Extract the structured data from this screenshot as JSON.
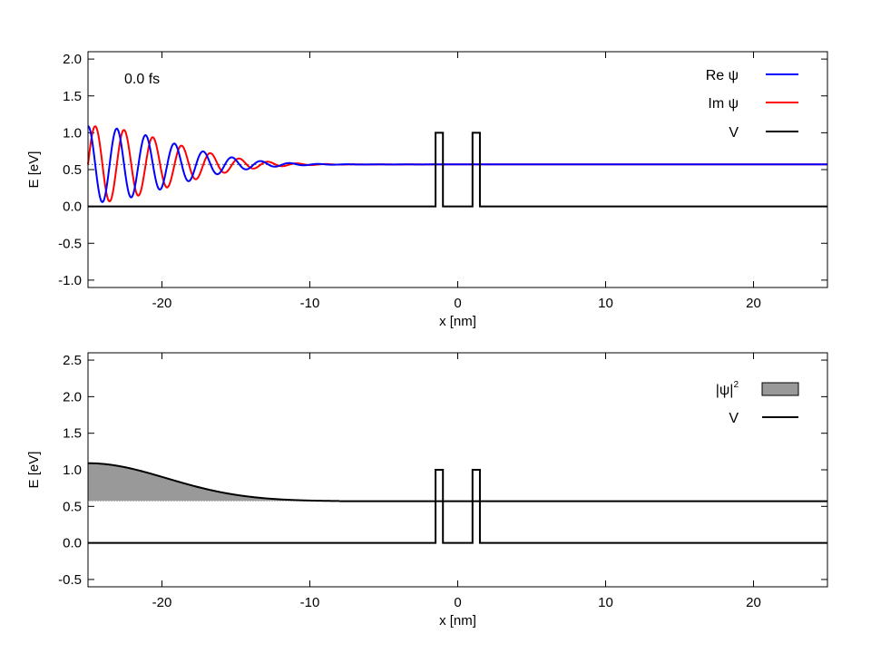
{
  "chart_data": [
    {
      "type": "line",
      "annotation": "0.0 fs",
      "xlabel": "x [nm]",
      "ylabel": "E [eV]",
      "xlim": [
        -25,
        25
      ],
      "ylim": [
        -1.1,
        2.1
      ],
      "xticks": [
        -20,
        -10,
        0,
        10,
        20
      ],
      "xtick_labels": [
        "-20",
        "-10",
        "0",
        "10",
        "20"
      ],
      "yticks": [
        -1.0,
        -0.5,
        0.0,
        0.5,
        1.0,
        1.5,
        2.0
      ],
      "ytick_labels": [
        "-1.0",
        "-0.5",
        "0.0",
        "0.5",
        "1.0",
        "1.5",
        "2.0"
      ],
      "legend_position": "top-right",
      "energy_level": 0.57,
      "barriers": {
        "height": 1.0,
        "intervals": [
          [
            -1.5,
            -1.0
          ],
          [
            1.0,
            1.5
          ]
        ]
      },
      "wavepacket": {
        "center_x": -25,
        "width_sigma": 5.3,
        "peak_amplitude": 0.52,
        "wavelength_nm": 1.95
      },
      "series": [
        {
          "name": "Re ψ",
          "color": "#0000ff"
        },
        {
          "name": "Im ψ",
          "color": "#ff0000"
        },
        {
          "name": "V",
          "color": "#000000"
        }
      ]
    },
    {
      "type": "area",
      "xlabel": "x [nm]",
      "ylabel": "E [eV]",
      "xlim": [
        -25,
        25
      ],
      "ylim": [
        -0.6,
        2.6
      ],
      "xticks": [
        -20,
        -10,
        0,
        10,
        20
      ],
      "xtick_labels": [
        "-20",
        "-10",
        "0",
        "10",
        "20"
      ],
      "yticks": [
        -0.5,
        0.0,
        0.5,
        1.0,
        1.5,
        2.0,
        2.5
      ],
      "ytick_labels": [
        "-0.5",
        "0.0",
        "0.5",
        "1.0",
        "1.5",
        "2.0",
        "2.5"
      ],
      "legend_position": "top-right",
      "energy_level": 0.57,
      "barriers": {
        "height": 1.0,
        "intervals": [
          [
            -1.5,
            -1.0
          ],
          [
            1.0,
            1.5
          ]
        ]
      },
      "density": {
        "center_x": -25,
        "width_sigma": 5.3,
        "peak_height": 0.52
      },
      "series": [
        {
          "name": "|ψ|",
          "superscript": "2",
          "color": "#999999"
        },
        {
          "name": "V",
          "color": "#000000"
        }
      ]
    }
  ]
}
